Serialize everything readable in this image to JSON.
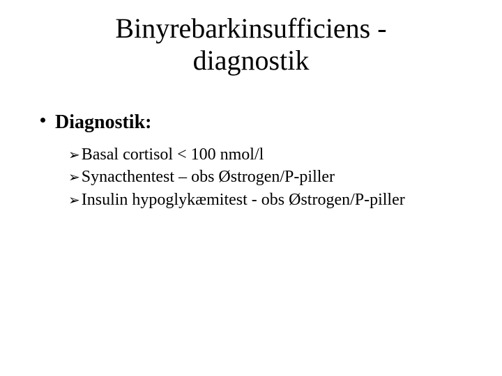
{
  "colors": {
    "background": "#ffffff",
    "text": "#000000"
  },
  "typography": {
    "family": "Times New Roman",
    "title_fontsize": 40,
    "bullet_fontsize": 28,
    "sub_fontsize": 24
  },
  "title": {
    "line1": "Binyrebarkinsufficiens -",
    "line2": "diagnostik"
  },
  "bullet": {
    "label": "Diagnostik:"
  },
  "sub": {
    "arrow_glyph": "➢",
    "items": [
      "Basal cortisol < 100 nmol/l",
      "Synacthentest – obs Østrogen/P-piller",
      "Insulin hypoglykæmitest - obs Østrogen/P-piller"
    ]
  }
}
